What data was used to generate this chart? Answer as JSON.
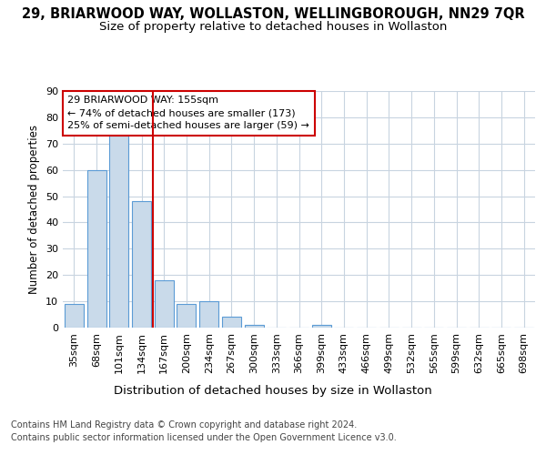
{
  "title": "29, BRIARWOOD WAY, WOLLASTON, WELLINGBOROUGH, NN29 7QR",
  "subtitle": "Size of property relative to detached houses in Wollaston",
  "xlabel": "Distribution of detached houses by size in Wollaston",
  "ylabel": "Number of detached properties",
  "categories": [
    "35sqm",
    "68sqm",
    "101sqm",
    "134sqm",
    "167sqm",
    "200sqm",
    "234sqm",
    "267sqm",
    "300sqm",
    "333sqm",
    "366sqm",
    "399sqm",
    "433sqm",
    "466sqm",
    "499sqm",
    "532sqm",
    "565sqm",
    "599sqm",
    "632sqm",
    "665sqm",
    "698sqm"
  ],
  "values": [
    9,
    60,
    73,
    48,
    18,
    9,
    10,
    4,
    1,
    0,
    0,
    1,
    0,
    0,
    0,
    0,
    0,
    0,
    0,
    0,
    0
  ],
  "bar_color": "#c9daea",
  "bar_edge_color": "#5b9bd5",
  "vline_color": "#cc0000",
  "vline_index": 4,
  "annotation_text": "29 BRIARWOOD WAY: 155sqm\n← 74% of detached houses are smaller (173)\n25% of semi-detached houses are larger (59) →",
  "annotation_box_edge_color": "#cc0000",
  "ylim": [
    0,
    90
  ],
  "yticks": [
    0,
    10,
    20,
    30,
    40,
    50,
    60,
    70,
    80,
    90
  ],
  "footer_line1": "Contains HM Land Registry data © Crown copyright and database right 2024.",
  "footer_line2": "Contains public sector information licensed under the Open Government Licence v3.0.",
  "title_fontsize": 10.5,
  "subtitle_fontsize": 9.5,
  "xlabel_fontsize": 9.5,
  "ylabel_fontsize": 8.5,
  "tick_fontsize": 8,
  "annot_fontsize": 8,
  "footer_fontsize": 7,
  "bg_color": "#ffffff",
  "grid_color": "#c8d4e0"
}
